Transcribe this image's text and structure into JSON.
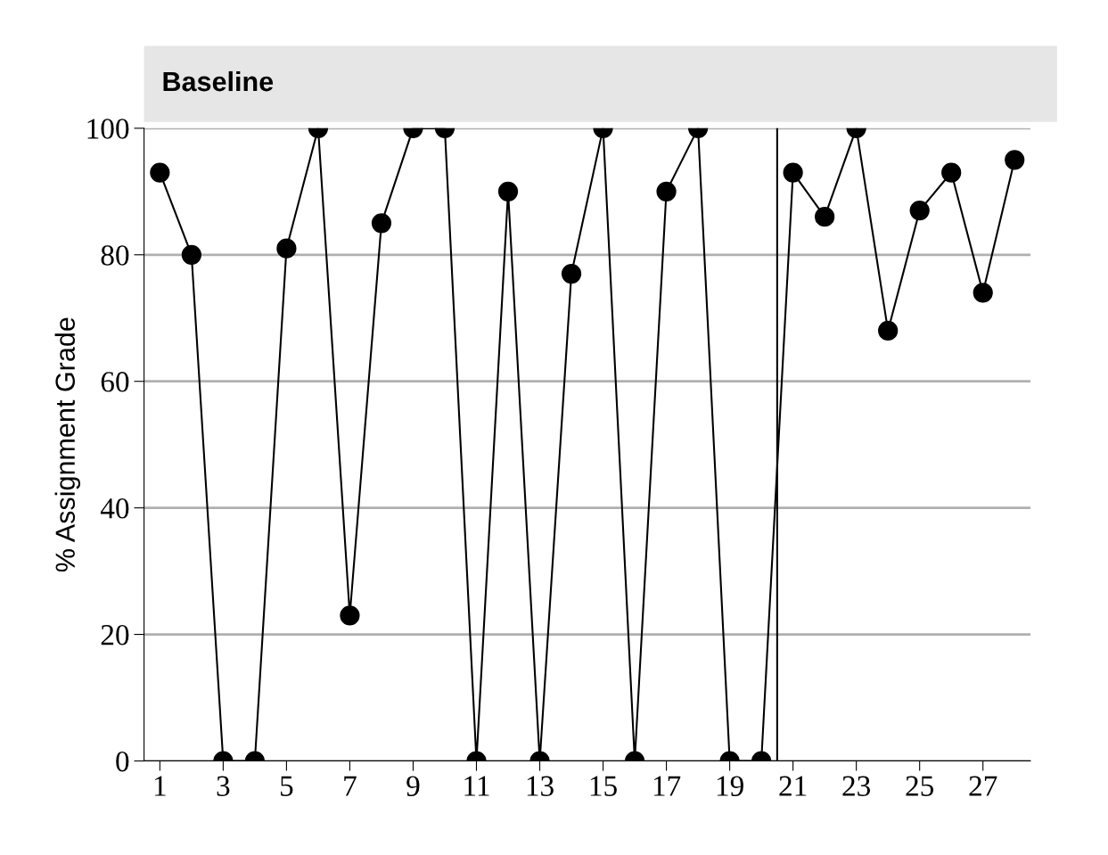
{
  "chart_data": {
    "type": "line",
    "ylabel": "% Assignment Grade",
    "x": [
      1,
      2,
      3,
      4,
      5,
      6,
      7,
      8,
      9,
      10,
      11,
      12,
      13,
      14,
      15,
      16,
      17,
      18,
      19,
      20,
      21,
      22,
      23,
      24,
      25,
      26,
      27,
      28
    ],
    "series": [
      {
        "color": "#000000",
        "values": [
          93,
          80,
          0,
          0,
          81,
          100,
          23,
          85,
          100,
          100,
          0,
          90,
          0,
          77,
          100,
          0,
          90,
          100,
          0,
          0,
          93,
          86,
          100,
          68,
          87,
          93,
          74,
          95
        ]
      }
    ],
    "xlim": [
      0.5,
      28.5
    ],
    "xticks": [
      1,
      3,
      5,
      7,
      9,
      11,
      13,
      15,
      17,
      19,
      21,
      23,
      25,
      27
    ],
    "ylim": [
      0,
      100
    ],
    "yticks": [
      0,
      20,
      40,
      60,
      80,
      100
    ],
    "ref_lines": [
      {
        "axis": "x",
        "value": 20.5,
        "color": "#000000"
      }
    ],
    "annotations": [
      "Baseline"
    ],
    "grid": "y",
    "marker": "circle",
    "line_style": "solid"
  }
}
